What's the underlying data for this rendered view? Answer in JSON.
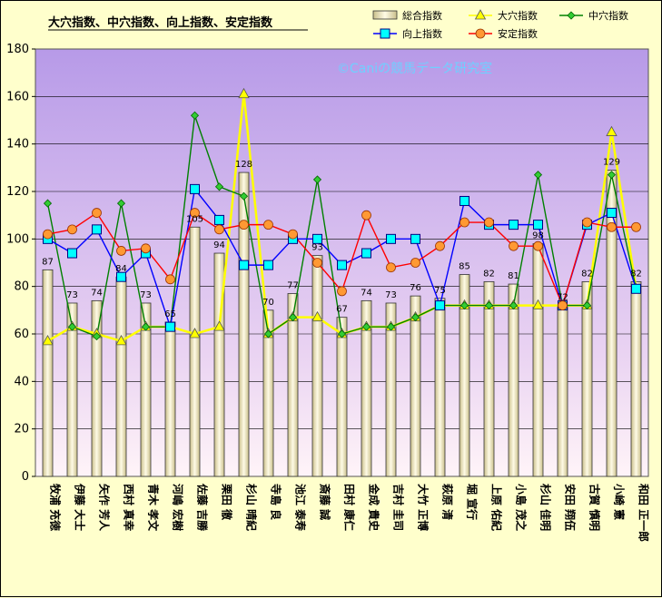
{
  "chart_data": {
    "type": "bar+line",
    "title": "大穴指数、中穴指数、向上指数、安定指数",
    "watermark": "©Caniの競馬データ研究室",
    "ylim": [
      0,
      180
    ],
    "yticks": [
      0,
      20,
      40,
      60,
      80,
      100,
      120,
      140,
      160,
      180
    ],
    "grid": true,
    "legend_position": "top-right",
    "categories": [
      "牧浦 充徳",
      "伊藤 大士",
      "矢作 芳人",
      "西村 真幸",
      "青木 孝文",
      "河嶋 宏樹",
      "佐藤 吉勝",
      "栗田 徹",
      "杉山 晴紀",
      "寺島 良",
      "池江 泰寿",
      "斎藤 誠",
      "田村 康仁",
      "金成 貴史",
      "吉村 圭司",
      "大竹 正博",
      "萩原 清",
      "堀 宣行",
      "上原 佑紀",
      "小島 茂之",
      "杉山 佳明",
      "安田 翔伍",
      "古賀 慎明",
      "小崎 憲",
      "和田 正一郎"
    ],
    "series": [
      {
        "name": "総合指数",
        "kind": "bar",
        "color": "#f3ecc3",
        "values": [
          87,
          73,
          74,
          84,
          73,
          65,
          105,
          94,
          128,
          70,
          77,
          93,
          67,
          74,
          73,
          76,
          75,
          85,
          82,
          81,
          98,
          72,
          82,
          129,
          82
        ],
        "labels": [
          "87",
          "73",
          "74",
          "84",
          "73",
          "65",
          "105",
          "94",
          "128",
          "70",
          "77",
          "93",
          "67",
          "74",
          "73",
          "76",
          "75",
          "85",
          "82",
          "81",
          "98",
          "72",
          "82",
          "129",
          "82"
        ]
      },
      {
        "name": "大穴指数",
        "kind": "line",
        "color": "#ffff00",
        "marker": "triangle",
        "values": [
          57,
          63,
          60,
          57,
          63,
          63,
          60,
          63,
          161,
          60,
          67,
          67,
          60,
          63,
          63,
          67,
          72,
          72,
          72,
          72,
          72,
          72,
          72,
          145,
          79
        ]
      },
      {
        "name": "中穴指数",
        "kind": "line",
        "color": "#008000",
        "marker": "diamond",
        "values": [
          115,
          63,
          59,
          115,
          63,
          63,
          152,
          122,
          118,
          60,
          67,
          125,
          60,
          63,
          63,
          67,
          72,
          72,
          72,
          72,
          127,
          72,
          72,
          127,
          79
        ]
      },
      {
        "name": "向上指数",
        "kind": "line",
        "color": "#0000ff",
        "marker": "square",
        "values": [
          100,
          94,
          104,
          84,
          94,
          63,
          121,
          108,
          89,
          89,
          100,
          100,
          89,
          94,
          100,
          100,
          72,
          116,
          106,
          106,
          106,
          72,
          106,
          111,
          79
        ]
      },
      {
        "name": "安定指数",
        "kind": "line",
        "color": "#ff0000",
        "marker": "circle",
        "values": [
          102,
          104,
          111,
          95,
          96,
          83,
          111,
          104,
          106,
          106,
          102,
          90,
          78,
          110,
          88,
          90,
          97,
          107,
          107,
          97,
          97,
          72,
          107,
          105,
          105
        ]
      }
    ]
  }
}
